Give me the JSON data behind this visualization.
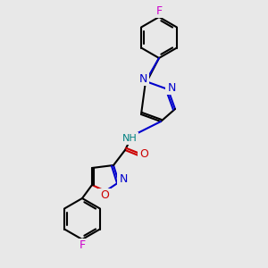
{
  "background_color": "#e8e8e8",
  "fig_size": [
    3.0,
    3.0
  ],
  "dpi": 100,
  "colors": {
    "C": "#000000",
    "N": "#0000cc",
    "O": "#cc0000",
    "F": "#cc00cc",
    "NH": "#008080"
  },
  "bond_lw": 1.5,
  "font_size": 8.5
}
